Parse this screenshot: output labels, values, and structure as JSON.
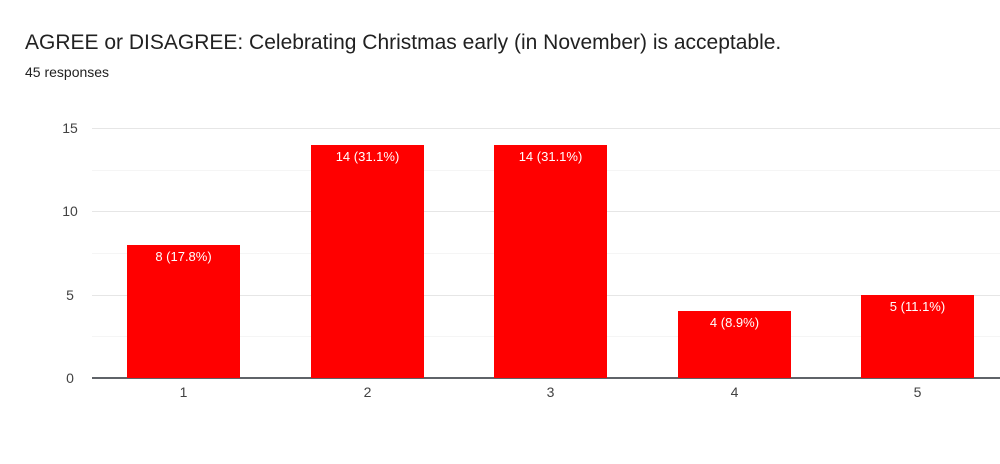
{
  "header": {
    "title": "AGREE or DISAGREE: Celebrating Christmas early (in November) is acceptable.",
    "responses_count": "45 responses"
  },
  "colors": {
    "bar": "#ff0000",
    "bar_label_text": "#ffffff",
    "axis_baseline": "#5f6368",
    "gridline_major": "#e6e6e6",
    "gridline_minor": "#f5f5f5",
    "title_text": "#212121",
    "tick_text": "#424242"
  },
  "chart_data": {
    "type": "bar",
    "title": "AGREE or DISAGREE: Celebrating Christmas early (in November) is acceptable.",
    "subtitle": "45 responses",
    "categories": [
      "1",
      "2",
      "3",
      "4",
      "5"
    ],
    "values": [
      8,
      14,
      14,
      4,
      5
    ],
    "bar_labels": [
      "8 (17.8%)",
      "14 (31.1%)",
      "14 (31.1%)",
      "4 (8.9%)",
      "5 (11.1%)"
    ],
    "xlabel": "",
    "ylabel": "",
    "ylim": [
      0,
      15
    ],
    "y_ticks": [
      0,
      5,
      10,
      15
    ],
    "y_minor_ticks": [
      2.5,
      7.5,
      12.5
    ],
    "grid": true,
    "legend": false,
    "bar_color": "#ff0000",
    "bar_label_position": "inside-top"
  }
}
